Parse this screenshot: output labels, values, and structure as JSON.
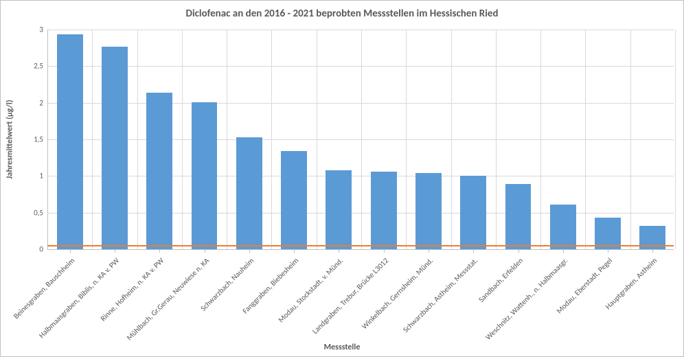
{
  "chart": {
    "type": "bar",
    "title": "Diclofenac an den 2016 - 2021 beprobten Messstellen im Hessischen Ried",
    "title_fontsize": 15,
    "ylabel": "Jahresmittelwert (µg/l)",
    "xlabel": "Messstelle",
    "axis_label_fontsize": 12,
    "tick_fontsize": 11,
    "background_color": "#ffffff",
    "grid_color": "#d9d9d9",
    "axis_color": "#bfbfbf",
    "text_color": "#595959",
    "categories": [
      "Beinesgraben, Bauschheim",
      "Halbmaasgraben, Biblis, n. KA v. PW",
      "Rinne, Hofheim, n. KA v. PW",
      "Mühlbach, Gr.Gerau, Neuwiese n. KA",
      "Schwarzbach, Nauheim",
      "Fanggraben, Biebesheim",
      "Modau, Stockstadt, v. Münd.",
      "Landgraben, Trebur, Brücke L3012",
      "Winkelbach, Gernsheim, Münd.",
      "Schwarzbach, Astheim, Messstat.",
      "Sandbach, Erfelden",
      "Weschnitz, Wattenh., n. Halbmaasgr.",
      "Modau, Eberstadt, Pegel",
      "Hauptgraben, Astheim"
    ],
    "values": [
      2.93,
      2.77,
      2.14,
      2.01,
      1.53,
      1.34,
      1.08,
      1.06,
      1.04,
      1.0,
      0.89,
      0.61,
      0.43,
      0.32
    ],
    "bar_color": "#5b9bd5",
    "bar_width": 0.58,
    "ylim": [
      0,
      3
    ],
    "ytick_step": 0.5,
    "ytick_labels": [
      "0",
      "0,5",
      "1",
      "1,5",
      "2",
      "2,5",
      "3"
    ],
    "decimal_sep": ",",
    "reference_line": {
      "value": 0.05,
      "color": "#ed7d31",
      "width": 2
    }
  }
}
